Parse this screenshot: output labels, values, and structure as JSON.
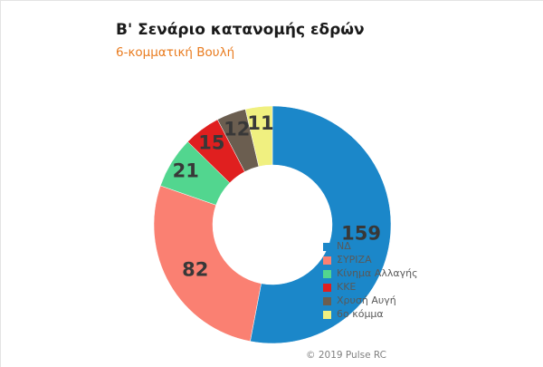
{
  "chart_data": {
    "type": "pie",
    "subtype": "donut",
    "title": "Β' Σενάριο κατανομής εδρών",
    "subtitle": "6-κομματική Βουλή",
    "categories": [
      "ΝΔ",
      "ΣΥΡΙΖΑ",
      "Κίνημα Αλλαγής",
      "ΚΚΕ",
      "Χρυσή Αυγή",
      "6ο κόμμα"
    ],
    "values": [
      159,
      82,
      21,
      15,
      12,
      11
    ],
    "slice_colors": [
      "#1B87C9",
      "#FA8072",
      "#52D68F",
      "#E01F1F",
      "#6B5E50",
      "#F0F080"
    ],
    "total": 300,
    "data_labels": true,
    "legend_position": "right",
    "start_angle_deg": 0,
    "direction": "clockwise"
  },
  "footer": {
    "copyright": "© 2019 Pulse RC"
  },
  "colors": {
    "subtitle_text": "#E97C20",
    "slice_label_text": "#383838",
    "legend_text": "#595959",
    "footer_text": "#808080",
    "background": "#FFFFFF"
  }
}
